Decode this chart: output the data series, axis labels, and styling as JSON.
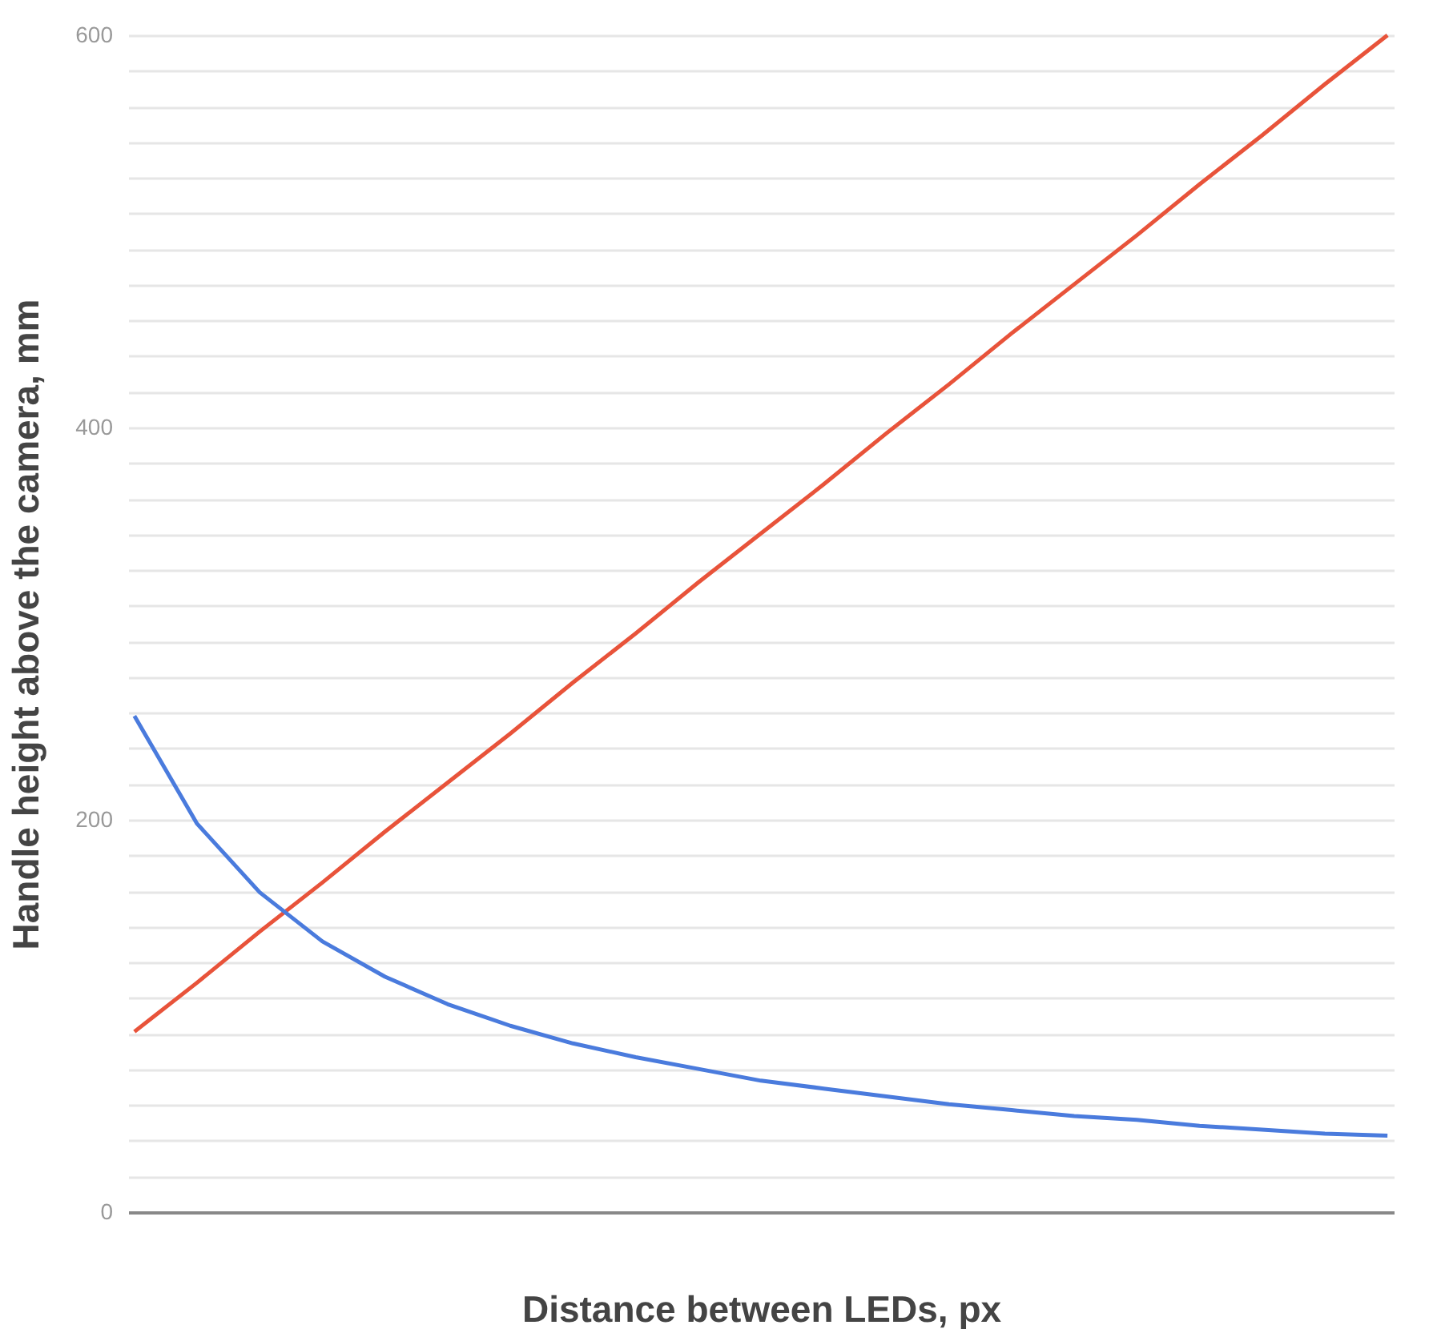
{
  "chart_data": {
    "type": "line",
    "xlabel": "Distance between LEDs, px",
    "ylabel": "Handle height above the camera, mm",
    "categories": [
      null,
      null,
      null,
      null,
      null,
      null,
      null,
      null,
      null,
      null,
      null,
      null,
      null,
      null,
      null,
      null,
      null,
      null,
      null,
      null,
      null
    ],
    "series": [
      {
        "color": "#e8533a",
        "values": [
          92,
          117,
          143,
          168,
          194,
          219,
          244,
          270,
          295,
          321,
          346,
          371,
          397,
          422,
          448,
          473,
          498,
          524,
          549,
          575,
          600
        ]
      },
      {
        "color": "#4a7bdd",
        "values": [
          253,
          198,
          163,
          138,
          120,
          106,
          95,
          86,
          79,
          73,
          67,
          63,
          59,
          55,
          52,
          49,
          47,
          44,
          42,
          40,
          39
        ]
      }
    ],
    "ylim": [
      0,
      600
    ],
    "yticks": [
      0,
      {
        "value": 18.2,
        "label": null
      },
      {
        "value": 36.4,
        "label": null
      },
      {
        "value": 54.5,
        "label": null
      },
      {
        "value": 72.7,
        "label": null
      },
      {
        "value": 90.9,
        "label": null
      },
      {
        "value": 109.1,
        "label": null
      },
      {
        "value": 127.3,
        "label": null
      },
      {
        "value": 145.5,
        "label": null
      },
      {
        "value": 163.6,
        "label": null
      },
      {
        "value": 181.8,
        "label": null
      },
      200,
      {
        "value": 218.2,
        "label": null
      },
      {
        "value": 236.4,
        "label": null
      },
      {
        "value": 254.5,
        "label": null
      },
      {
        "value": 272.7,
        "label": null
      },
      {
        "value": 290.9,
        "label": null
      },
      {
        "value": 309.1,
        "label": null
      },
      {
        "value": 327.3,
        "label": null
      },
      {
        "value": 345.5,
        "label": null
      },
      {
        "value": 363.6,
        "label": null
      },
      {
        "value": 381.8,
        "label": null
      },
      400,
      {
        "value": 418.2,
        "label": null
      },
      {
        "value": 436.4,
        "label": null
      },
      {
        "value": 454.5,
        "label": null
      },
      {
        "value": 472.7,
        "label": null
      },
      {
        "value": 490.9,
        "label": null
      },
      {
        "value": 509.1,
        "label": null
      },
      {
        "value": 527.3,
        "label": null
      },
      {
        "value": 545.5,
        "label": null
      },
      {
        "value": 563.6,
        "label": null
      },
      {
        "value": 581.8,
        "label": null
      },
      600
    ],
    "grid": "y",
    "tick_labels": "y",
    "line_style": "solid",
    "marker": "none"
  }
}
